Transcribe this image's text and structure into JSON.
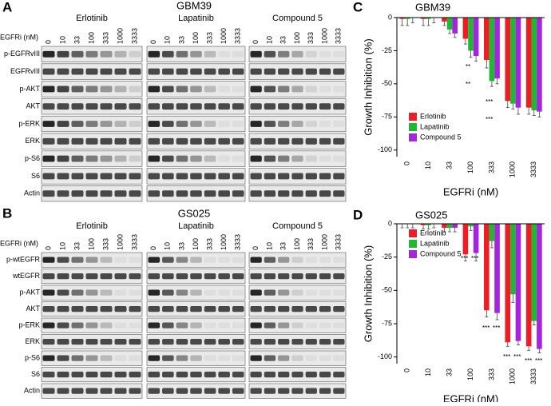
{
  "panels": [
    {
      "label": "A",
      "title": "GBM39",
      "dose_label": "EGFRi (nM)",
      "drugs": [
        "Erlotinib",
        "Lapatinib",
        "Compound 5"
      ],
      "doses": [
        0,
        10,
        33,
        100,
        333,
        1000,
        3333
      ],
      "rows": [
        "p-EGFRvIII",
        "EGFRvIII",
        "p-AKT",
        "AKT",
        "p-ERK",
        "ERK",
        "p-S6",
        "S6",
        "Actin"
      ]
    },
    {
      "label": "B",
      "title": "GS025",
      "dose_label": "EGFRi (nM)",
      "drugs": [
        "Erlotinib",
        "Lapatinib",
        "Compound 5"
      ],
      "doses": [
        0,
        10,
        33,
        100,
        333,
        1000,
        3333
      ],
      "rows": [
        "p-wtEGFR",
        "wtEGFR",
        "p-AKT",
        "AKT",
        "p-ERK",
        "ERK",
        "p-S6",
        "S6",
        "Actin"
      ]
    }
  ],
  "chart_data": [
    {
      "type": "bar",
      "panel": "C",
      "title": "GBM39",
      "x_label": "EGFRi (nM)",
      "y_label": "Growth Inhibition (%)",
      "categories": [
        "0",
        "10",
        "33",
        "100",
        "333",
        "1000",
        "3333"
      ],
      "series": [
        {
          "name": "Erlotinib",
          "color": "#ee1c25",
          "values": [
            -1,
            -1,
            -3,
            -16,
            -32,
            -63,
            -68
          ],
          "errors": [
            5,
            5,
            3,
            4,
            6,
            5,
            5
          ]
        },
        {
          "name": "Lapatinib",
          "color": "#22b733",
          "values": [
            -1,
            -1,
            -9,
            -25,
            -48,
            -65,
            -70
          ],
          "errors": [
            5,
            5,
            3,
            5,
            4,
            4,
            4
          ]
        },
        {
          "name": "Compound 5",
          "color": "#a325de",
          "values": [
            0,
            0,
            -12,
            -29,
            -46,
            -68,
            -71
          ],
          "errors": [
            4,
            4,
            3,
            4,
            4,
            5,
            4
          ]
        }
      ],
      "ylim": [
        -105,
        0
      ],
      "yticks": [
        0,
        -25,
        -50,
        -75,
        -100
      ],
      "legend": "lower left",
      "annotations": [
        "**",
        "**",
        "***",
        "***"
      ]
    },
    {
      "type": "bar",
      "panel": "D",
      "title": "GS025",
      "x_label": "EGFRi (nM)",
      "y_label": "Growth Inhibition (%)",
      "categories": [
        "0",
        "10",
        "33",
        "100",
        "333",
        "1000",
        "3333"
      ],
      "series": [
        {
          "name": "Erlotinib",
          "color": "#ee1c25",
          "values": [
            0,
            -1,
            -3,
            -23,
            -65,
            -89,
            -92
          ],
          "errors": [
            3,
            3,
            3,
            5,
            5,
            3,
            3
          ]
        },
        {
          "name": "Lapatinib",
          "color": "#22b733",
          "values": [
            0,
            -1,
            -3,
            -2,
            -13,
            -53,
            -73
          ],
          "errors": [
            3,
            3,
            3,
            3,
            5,
            6,
            3
          ]
        },
        {
          "name": "Compound 5",
          "color": "#a325de",
          "values": [
            0,
            0,
            -3,
            -22,
            -67,
            -88,
            -94
          ],
          "errors": [
            3,
            3,
            3,
            6,
            5,
            3,
            3
          ]
        }
      ],
      "ylim": [
        -105,
        0
      ],
      "yticks": [
        0,
        -25,
        -50,
        -75,
        -100
      ],
      "legend": "upper left",
      "annotations": [
        "***",
        "***",
        "***",
        "***",
        "***",
        "***",
        "***",
        "***"
      ]
    }
  ]
}
